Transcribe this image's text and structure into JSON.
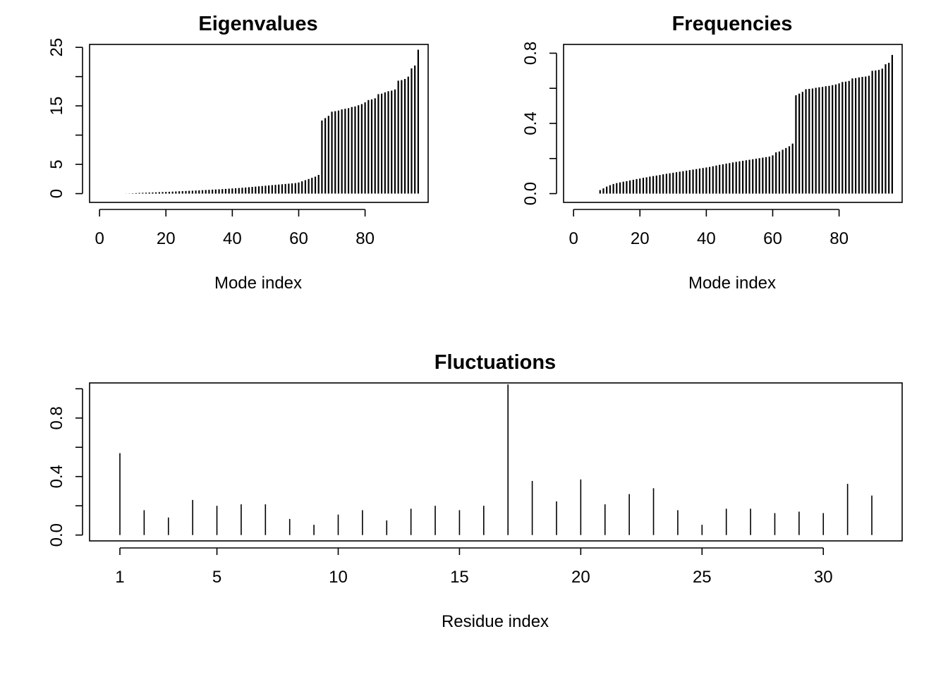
{
  "chart_data": [
    {
      "id": "eigenvalues",
      "type": "bar",
      "title": "Eigenvalues",
      "xlabel": "Mode index",
      "ylabel": "",
      "xlim": [
        -3,
        99
      ],
      "ylim": [
        -1.5,
        25.5
      ],
      "x_ticks": [
        0,
        20,
        40,
        60,
        80
      ],
      "y_ticks": [
        0,
        5,
        10,
        15,
        20,
        25
      ],
      "y_tick_labels": [
        "0",
        "5",
        "",
        "15",
        "",
        "25"
      ],
      "x": [
        1,
        2,
        3,
        4,
        5,
        6,
        7,
        8,
        9,
        10,
        11,
        12,
        13,
        14,
        15,
        16,
        17,
        18,
        19,
        20,
        21,
        22,
        23,
        24,
        25,
        26,
        27,
        28,
        29,
        30,
        31,
        32,
        33,
        34,
        35,
        36,
        37,
        38,
        39,
        40,
        41,
        42,
        43,
        44,
        45,
        46,
        47,
        48,
        49,
        50,
        51,
        52,
        53,
        54,
        55,
        56,
        57,
        58,
        59,
        60,
        61,
        62,
        63,
        64,
        65,
        66,
        67,
        68,
        69,
        70,
        71,
        72,
        73,
        74,
        75,
        76,
        77,
        78,
        79,
        80,
        81,
        82,
        83,
        84,
        85,
        86,
        87,
        88,
        89,
        90,
        91,
        92,
        93,
        94,
        95,
        96
      ],
      "values": [
        0,
        0,
        0,
        0,
        0,
        0,
        0,
        0.01,
        0.03,
        0.06,
        0.09,
        0.12,
        0.14,
        0.16,
        0.18,
        0.2,
        0.22,
        0.25,
        0.27,
        0.29,
        0.31,
        0.34,
        0.37,
        0.4,
        0.42,
        0.45,
        0.48,
        0.5,
        0.53,
        0.56,
        0.59,
        0.62,
        0.65,
        0.68,
        0.71,
        0.74,
        0.77,
        0.81,
        0.85,
        0.88,
        0.92,
        0.96,
        1.0,
        1.05,
        1.1,
        1.15,
        1.2,
        1.25,
        1.3,
        1.35,
        1.4,
        1.45,
        1.5,
        1.55,
        1.6,
        1.65,
        1.7,
        1.75,
        1.8,
        1.9,
        2.1,
        2.3,
        2.5,
        2.7,
        2.9,
        3.2,
        12.5,
        12.9,
        13.3,
        14.0,
        14.1,
        14.2,
        14.4,
        14.5,
        14.6,
        14.8,
        14.9,
        15.1,
        15.3,
        15.6,
        16.0,
        16.1,
        16.3,
        17.0,
        17.1,
        17.3,
        17.5,
        17.6,
        17.8,
        19.3,
        19.4,
        19.6,
        20.0,
        21.4,
        21.9,
        24.6
      ]
    },
    {
      "id": "frequencies",
      "type": "bar",
      "title": "Frequencies",
      "xlabel": "Mode index",
      "ylabel": "",
      "xlim": [
        -3,
        99
      ],
      "ylim": [
        -0.05,
        0.85
      ],
      "x_ticks": [
        0,
        20,
        40,
        60,
        80
      ],
      "y_ticks": [
        0.0,
        0.2,
        0.4,
        0.6,
        0.8
      ],
      "y_tick_labels": [
        "0.0",
        "",
        "0.4",
        "",
        "0.8"
      ],
      "x": [
        1,
        2,
        3,
        4,
        5,
        6,
        7,
        8,
        9,
        10,
        11,
        12,
        13,
        14,
        15,
        16,
        17,
        18,
        19,
        20,
        21,
        22,
        23,
        24,
        25,
        26,
        27,
        28,
        29,
        30,
        31,
        32,
        33,
        34,
        35,
        36,
        37,
        38,
        39,
        40,
        41,
        42,
        43,
        44,
        45,
        46,
        47,
        48,
        49,
        50,
        51,
        52,
        53,
        54,
        55,
        56,
        57,
        58,
        59,
        60,
        61,
        62,
        63,
        64,
        65,
        66,
        67,
        68,
        69,
        70,
        71,
        72,
        73,
        74,
        75,
        76,
        77,
        78,
        79,
        80,
        81,
        82,
        83,
        84,
        85,
        86,
        87,
        88,
        89,
        90,
        91,
        92,
        93,
        94,
        95,
        96
      ],
      "values": [
        0,
        0,
        0,
        0,
        0,
        0,
        0,
        0.02,
        0.03,
        0.04,
        0.048,
        0.055,
        0.06,
        0.064,
        0.068,
        0.071,
        0.075,
        0.079,
        0.083,
        0.086,
        0.09,
        0.093,
        0.097,
        0.1,
        0.103,
        0.106,
        0.11,
        0.113,
        0.116,
        0.119,
        0.122,
        0.125,
        0.128,
        0.131,
        0.134,
        0.137,
        0.14,
        0.143,
        0.146,
        0.149,
        0.152,
        0.156,
        0.16,
        0.164,
        0.167,
        0.171,
        0.174,
        0.178,
        0.181,
        0.184,
        0.187,
        0.19,
        0.193,
        0.196,
        0.199,
        0.202,
        0.205,
        0.208,
        0.211,
        0.218,
        0.235,
        0.24,
        0.25,
        0.26,
        0.27,
        0.285,
        0.56,
        0.57,
        0.58,
        0.595,
        0.597,
        0.599,
        0.603,
        0.606,
        0.608,
        0.612,
        0.614,
        0.618,
        0.622,
        0.628,
        0.636,
        0.638,
        0.642,
        0.656,
        0.658,
        0.662,
        0.665,
        0.667,
        0.671,
        0.7,
        0.702,
        0.705,
        0.712,
        0.737,
        0.745,
        0.79
      ]
    },
    {
      "id": "fluctuations",
      "type": "bar",
      "title": "Fluctuations",
      "xlabel": "Residue index",
      "ylabel": "",
      "xlim": [
        -0.25,
        33.25
      ],
      "ylim": [
        -0.04,
        1.04
      ],
      "x_ticks": [
        1,
        5,
        10,
        15,
        20,
        25,
        30
      ],
      "y_ticks": [
        0.0,
        0.2,
        0.4,
        0.6,
        0.8,
        1.0
      ],
      "y_tick_labels": [
        "0.0",
        "",
        "0.4",
        "",
        "0.8",
        ""
      ],
      "x": [
        1,
        2,
        3,
        4,
        5,
        6,
        7,
        8,
        9,
        10,
        11,
        12,
        13,
        14,
        15,
        16,
        17,
        18,
        19,
        20,
        21,
        22,
        23,
        24,
        25,
        26,
        27,
        28,
        29,
        30,
        31,
        32
      ],
      "values": [
        0.56,
        0.17,
        0.12,
        0.24,
        0.2,
        0.21,
        0.21,
        0.11,
        0.07,
        0.14,
        0.17,
        0.1,
        0.18,
        0.2,
        0.17,
        0.2,
        1.03,
        0.37,
        0.23,
        0.38,
        0.21,
        0.28,
        0.32,
        0.17,
        0.07,
        0.18,
        0.18,
        0.15,
        0.16,
        0.15,
        0.35,
        0.27
      ]
    }
  ]
}
